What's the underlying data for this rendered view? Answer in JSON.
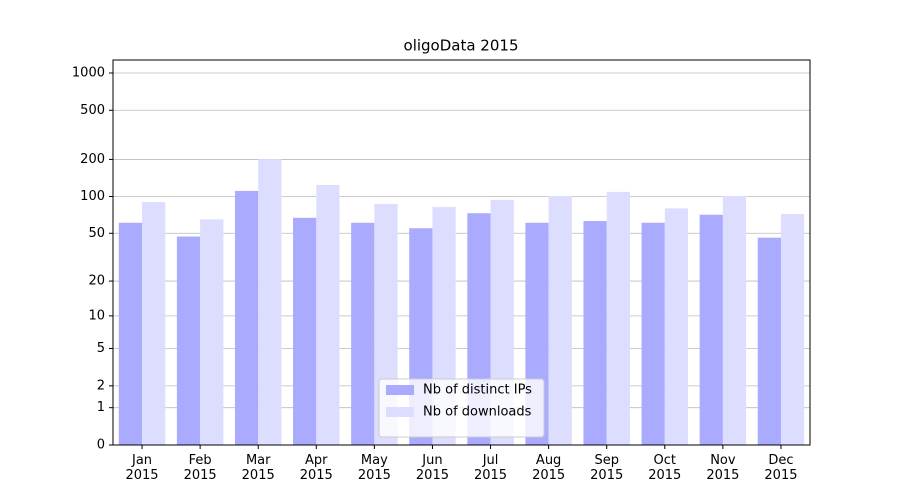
{
  "chart_data": {
    "type": "bar",
    "title": "oligoData 2015",
    "categories": [
      "Jan\n2015",
      "Feb\n2015",
      "Mar\n2015",
      "Apr\n2015",
      "May\n2015",
      "Jun\n2015",
      "Jul\n2015",
      "Aug\n2015",
      "Sep\n2015",
      "Oct\n2015",
      "Nov\n2015",
      "Dec\n2015"
    ],
    "series": [
      {
        "name": "Nb of distinct IPs",
        "color": "#aaaaff",
        "values": [
          61,
          47,
          111,
          67,
          61,
          55,
          73,
          61,
          63,
          61,
          71,
          46
        ]
      },
      {
        "name": "Nb of downloads",
        "color": "#ddddff",
        "values": [
          90,
          65,
          201,
          124,
          87,
          82,
          94,
          101,
          109,
          80,
          101,
          72
        ]
      }
    ],
    "yscale": "log1p",
    "ylim": [
      0,
      1273
    ],
    "yticks": [
      0,
      1,
      2,
      5,
      10,
      20,
      50,
      100,
      200,
      500,
      1000
    ],
    "grid": true,
    "legend": "lower center"
  }
}
